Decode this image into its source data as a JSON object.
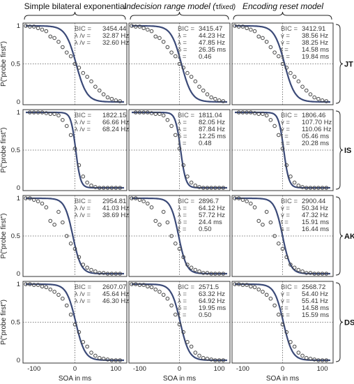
{
  "chart_data": {
    "type": "scatter",
    "xlabel": "SOA in ms",
    "ylabel": "P(\"probe first\")",
    "xlim": [
      -120,
      120
    ],
    "ylim": [
      0,
      1
    ],
    "xticks": [
      "-100",
      "0",
      "100"
    ],
    "yticks": [
      "0",
      "0.5",
      "1"
    ],
    "columns": [
      "Simple bilateral exponential",
      "Indecision range model (",
      "Encoding reset model"
    ],
    "column2_suffix": "fixed)",
    "subjects": [
      {
        "name": "JT",
        "panels": [
          {
            "lines": [
              {
                "label": "BIC =",
                "value": "3454.44"
              },
              {
                "label": "λ /v =",
                "value": "32.87 Hz"
              },
              {
                "label": "λ /v =",
                "value": "32.60 Hz"
              }
            ]
          },
          {
            "lines": [
              {
                "label": "BIC =",
                "value": "3415.47"
              },
              {
                "label": "λ  =",
                "value": "44.23 Hz"
              },
              {
                "label": "λ  =",
                "value": "47.85 Hz"
              },
              {
                "label": "δ =",
                "value": "26.35 ms"
              },
              {
                "label": "ξ =",
                "value": "0.46"
              }
            ]
          },
          {
            "lines": [
              {
                "label": "BIC =",
                "value": "3412.91"
              },
              {
                "label": "v  =",
                "value": "38.56 Hz"
              },
              {
                "label": "v  =",
                "value": "38.25 Hz"
              },
              {
                "label": "t  =",
                "value": "14.58 ms"
              },
              {
                "label": "s  =",
                "value": "19.84 ms"
              }
            ]
          }
        ],
        "x": [
          -120,
          -110,
          -100,
          -90,
          -80,
          -70,
          -60,
          -50,
          -40,
          -30,
          -20,
          -10,
          0,
          10,
          20,
          30,
          40,
          50,
          60,
          70,
          80,
          90,
          100,
          110
        ],
        "y": [
          1.0,
          0.99,
          0.99,
          0.97,
          0.95,
          0.93,
          0.86,
          0.84,
          0.79,
          0.72,
          0.65,
          0.6,
          0.5,
          0.45,
          0.38,
          0.33,
          0.27,
          0.2,
          0.15,
          0.1,
          0.06,
          0.04,
          0.02,
          0.01
        ]
      },
      {
        "name": "IS",
        "panels": [
          {
            "lines": [
              {
                "label": "BIC =",
                "value": "1822.15"
              },
              {
                "label": "λ /v =",
                "value": "66.66 Hz"
              },
              {
                "label": "λ /v =",
                "value": "68.24 Hz"
              }
            ]
          },
          {
            "lines": [
              {
                "label": "BIC =",
                "value": "1811.04"
              },
              {
                "label": "λ  =",
                "value": "82.05 Hz"
              },
              {
                "label": "λ  =",
                "value": "87.84 Hz"
              },
              {
                "label": "δ =",
                "value": "12.25 ms"
              },
              {
                "label": "ξ =",
                "value": "0.48"
              }
            ]
          },
          {
            "lines": [
              {
                "label": "BIC =",
                "value": "1806.46"
              },
              {
                "label": "v  =",
                "value": "107.70 Hz"
              },
              {
                "label": "v  =",
                "value": "110.06 Hz"
              },
              {
                "label": "t  =",
                "value": "05.46 ms"
              },
              {
                "label": "s  =",
                "value": "20.28 ms"
              }
            ]
          }
        ],
        "x": [
          -110,
          -100,
          -90,
          -80,
          -70,
          -60,
          -50,
          -40,
          -30,
          -20,
          -10,
          0,
          10,
          20,
          30,
          40,
          50,
          60,
          70,
          80,
          90,
          100,
          110
        ],
        "y": [
          1.0,
          1.0,
          1.0,
          1.0,
          0.99,
          0.98,
          0.98,
          0.96,
          0.9,
          0.82,
          0.7,
          0.52,
          0.3,
          0.15,
          0.07,
          0.03,
          0.01,
          0.0,
          0.0,
          0.0,
          0.0,
          0.0,
          0.0
        ]
      },
      {
        "name": "AK",
        "panels": [
          {
            "lines": [
              {
                "label": "BIC =",
                "value": "2954.81"
              },
              {
                "label": "λ /v =",
                "value": "41.03 Hz"
              },
              {
                "label": "λ /v =",
                "value": "38.69 Hz"
              }
            ]
          },
          {
            "lines": [
              {
                "label": "BIC =",
                "value": "2896.7"
              },
              {
                "label": "λ  =",
                "value": "64.12 Hz"
              },
              {
                "label": "λ  =",
                "value": "57.72 Hz"
              },
              {
                "label": "δ =",
                "value": "24.4 ms"
              },
              {
                "label": "ξ =",
                "value": "0.50"
              }
            ]
          },
          {
            "lines": [
              {
                "label": "BIC =",
                "value": "2900.44"
              },
              {
                "label": "v  =",
                "value": "50.34 Hz"
              },
              {
                "label": "v  =",
                "value": "47.32 Hz"
              },
              {
                "label": "t  =",
                "value": "15.91 ms"
              },
              {
                "label": "s  =",
                "value": "16.44 ms"
              }
            ]
          }
        ],
        "x": [
          -120,
          -110,
          -100,
          -90,
          -80,
          -70,
          -60,
          -50,
          -40,
          -30,
          -20,
          -10,
          0,
          10,
          20,
          30,
          40,
          50,
          60,
          70,
          80,
          90,
          100,
          110
        ],
        "y": [
          1.0,
          1.0,
          0.98,
          0.96,
          0.93,
          0.88,
          0.7,
          0.65,
          0.82,
          0.68,
          0.5,
          0.4,
          0.33,
          0.22,
          0.12,
          0.08,
          0.05,
          0.03,
          0.01,
          0.01,
          0.0,
          0.0,
          0.0,
          0.0
        ]
      },
      {
        "name": "DS",
        "panels": [
          {
            "lines": [
              {
                "label": "BIC =",
                "value": "2607.07"
              },
              {
                "label": "λ /v =",
                "value": "45.64 Hz"
              },
              {
                "label": "λ /v =",
                "value": "46.30 Hz"
              }
            ]
          },
          {
            "lines": [
              {
                "label": "BIC =",
                "value": "2571.5"
              },
              {
                "label": "λ  =",
                "value": "63.32 Hz"
              },
              {
                "label": "λ  =",
                "value": "64.92 Hz"
              },
              {
                "label": "δ =",
                "value": "19.95 ms"
              },
              {
                "label": "ξ =",
                "value": "0.50"
              }
            ]
          },
          {
            "lines": [
              {
                "label": "BIC =",
                "value": "2568.72"
              },
              {
                "label": "v  =",
                "value": "54.40 Hz"
              },
              {
                "label": "v  =",
                "value": "55.41 Hz"
              },
              {
                "label": "t  =",
                "value": "14.58 ms"
              },
              {
                "label": "s  =",
                "value": "15.59 ms"
              }
            ]
          }
        ],
        "x": [
          -120,
          -110,
          -100,
          -90,
          -80,
          -70,
          -60,
          -50,
          -40,
          -30,
          -20,
          -10,
          0,
          10,
          20,
          30,
          40,
          50,
          60,
          70,
          80,
          90,
          100,
          110
        ],
        "y": [
          1.0,
          1.0,
          0.99,
          0.99,
          0.97,
          0.96,
          0.93,
          0.9,
          0.86,
          0.81,
          0.72,
          0.6,
          0.47,
          0.37,
          0.24,
          0.18,
          0.1,
          0.06,
          0.03,
          0.02,
          0.01,
          0.0,
          0.0,
          0.0
        ]
      }
    ]
  }
}
